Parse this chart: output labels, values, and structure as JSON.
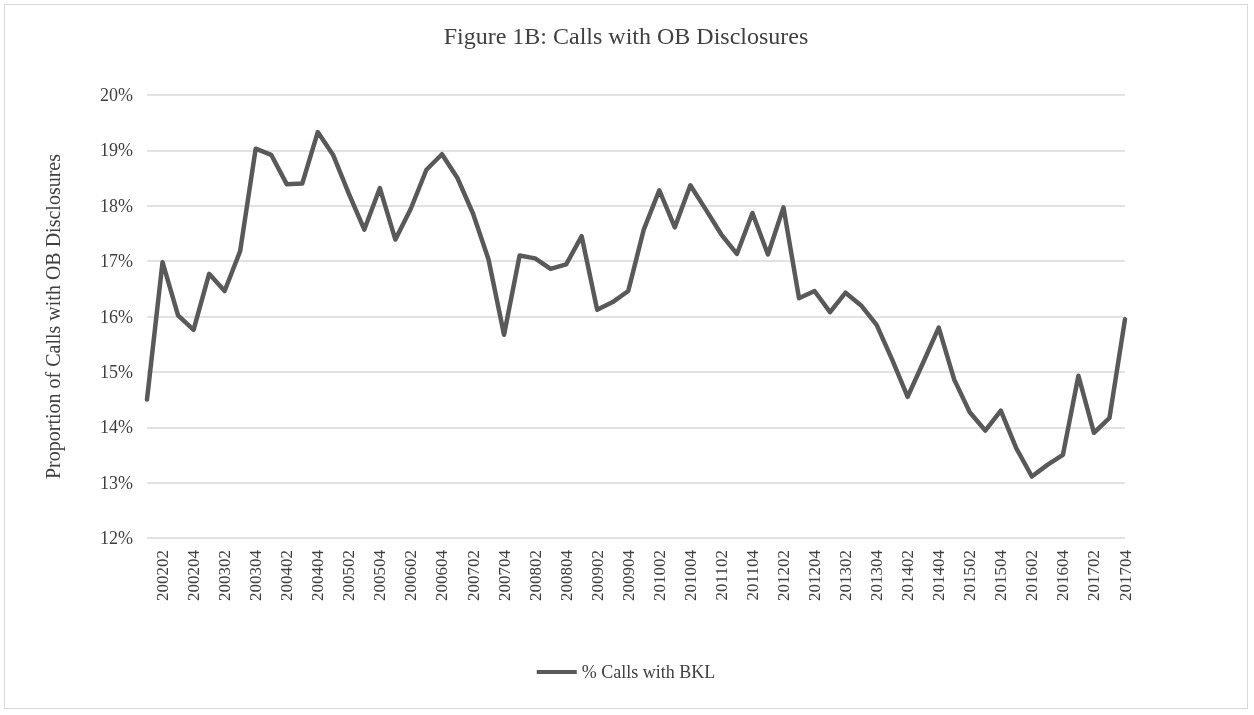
{
  "chart_data": {
    "type": "line",
    "title": "Figure 1B: Calls with OB Disclosures",
    "ylabel": "Proportion of Calls with OB Disclosures",
    "categories": [
      null,
      "200202",
      null,
      "200204",
      null,
      "200302",
      null,
      "200304",
      null,
      "200402",
      null,
      "200404",
      null,
      "200502",
      null,
      "200504",
      null,
      "200602",
      null,
      "200604",
      null,
      "200702",
      null,
      "200704",
      null,
      "200802",
      null,
      "200804",
      null,
      "200902",
      null,
      "200904",
      null,
      "201002",
      null,
      "201004",
      null,
      "201102",
      null,
      "201104",
      null,
      "201202",
      null,
      "201204",
      null,
      "201302",
      null,
      "201304",
      null,
      "201402",
      null,
      "201404",
      null,
      "201502",
      null,
      "201504",
      null,
      "201602",
      null,
      "201604",
      null,
      "201702",
      null,
      "201704"
    ],
    "series": [
      {
        "name": "% Calls with BKL",
        "color": "#595959",
        "values": [
          14.5,
          16.98,
          16.02,
          15.76,
          16.77,
          16.46,
          17.18,
          19.03,
          18.92,
          18.39,
          18.4,
          19.33,
          18.91,
          18.22,
          17.57,
          18.32,
          17.39,
          17.95,
          18.65,
          18.93,
          18.5,
          17.86,
          17.03,
          15.67,
          17.1,
          17.05,
          16.86,
          16.94,
          17.45,
          16.12,
          16.26,
          16.46,
          17.57,
          18.28,
          17.61,
          18.37,
          17.93,
          17.48,
          17.13,
          17.87,
          17.12,
          17.97,
          16.33,
          16.46,
          16.08,
          16.43,
          16.2,
          15.85,
          15.22,
          14.55,
          15.17,
          15.8,
          14.86,
          14.27,
          13.94,
          14.3,
          13.62,
          13.11,
          13.32,
          13.5,
          14.93,
          13.9,
          14.17,
          15.95
        ]
      }
    ],
    "ylim": [
      12,
      20
    ],
    "yticks": [
      {
        "value": 12,
        "label": "12%"
      },
      {
        "value": 13,
        "label": "13%"
      },
      {
        "value": 14,
        "label": "14%"
      },
      {
        "value": 15,
        "label": "15%"
      },
      {
        "value": 16,
        "label": "16%"
      },
      {
        "value": 17,
        "label": "17%"
      },
      {
        "value": 18,
        "label": "18%"
      },
      {
        "value": 19,
        "label": "19%"
      },
      {
        "value": 20,
        "label": "20%"
      }
    ],
    "grid": "y",
    "legend": "bottom",
    "marker": "none",
    "line_style": "solid"
  }
}
